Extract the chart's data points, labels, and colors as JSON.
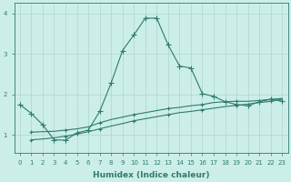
{
  "xlabel": "Humidex (Indice chaleur)",
  "bg_color": "#cceee8",
  "line_color": "#2e7b6e",
  "grid_color": "#b0d4cc",
  "xlim": [
    -0.5,
    23.5
  ],
  "ylim": [
    0.55,
    4.25
  ],
  "xticks": [
    0,
    1,
    2,
    3,
    4,
    5,
    6,
    7,
    8,
    9,
    10,
    11,
    12,
    13,
    14,
    15,
    16,
    17,
    18,
    19,
    20,
    21,
    22,
    23
  ],
  "yticks": [
    1,
    2,
    3,
    4
  ],
  "curve1_x": [
    0,
    1,
    2,
    3,
    4,
    5,
    6,
    7,
    8,
    9,
    10,
    11,
    12,
    13,
    14,
    15,
    16,
    17,
    18,
    19,
    20,
    21,
    22,
    23
  ],
  "curve1_y": [
    1.75,
    1.53,
    1.25,
    0.88,
    0.87,
    1.05,
    1.12,
    1.58,
    2.28,
    3.08,
    3.47,
    3.88,
    3.88,
    3.22,
    2.7,
    2.65,
    2.02,
    1.95,
    1.82,
    1.75,
    1.72,
    1.82,
    1.88,
    1.83
  ],
  "curve2_x": [
    1,
    2,
    3,
    4,
    5,
    6,
    7,
    8,
    9,
    10,
    11,
    12,
    13,
    14,
    15,
    16,
    17,
    18,
    19,
    20,
    21,
    22,
    23
  ],
  "curve2_y": [
    1.07,
    1.08,
    1.09,
    1.12,
    1.15,
    1.2,
    1.3,
    1.38,
    1.44,
    1.5,
    1.55,
    1.6,
    1.65,
    1.68,
    1.72,
    1.75,
    1.8,
    1.82,
    1.83,
    1.83,
    1.85,
    1.88,
    1.9
  ],
  "curve3_x": [
    1,
    2,
    3,
    4,
    5,
    6,
    7,
    8,
    9,
    10,
    11,
    12,
    13,
    14,
    15,
    16,
    17,
    18,
    19,
    20,
    21,
    22,
    23
  ],
  "curve3_y": [
    0.88,
    0.9,
    0.93,
    0.97,
    1.02,
    1.08,
    1.15,
    1.22,
    1.28,
    1.35,
    1.4,
    1.45,
    1.5,
    1.55,
    1.58,
    1.62,
    1.66,
    1.7,
    1.73,
    1.76,
    1.8,
    1.83,
    1.88
  ]
}
